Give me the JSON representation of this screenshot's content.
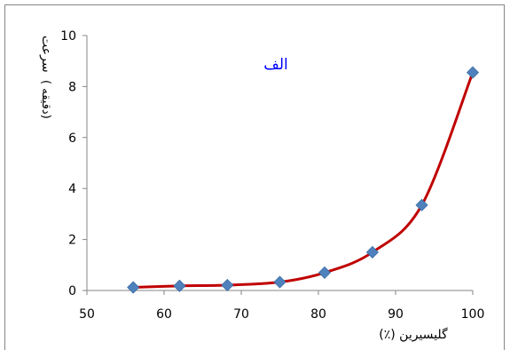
{
  "chart_data": {
    "type": "scatter",
    "title": "الف",
    "xlabel": "گلیسیرین (٪)",
    "ylabel_line1": "سرعت",
    "ylabel_line2": "( دقیقه)",
    "xlim": [
      50,
      100
    ],
    "ylim": [
      0,
      10
    ],
    "x_ticks": [
      50,
      60,
      70,
      80,
      90,
      100
    ],
    "y_ticks": [
      0,
      2,
      4,
      6,
      8,
      10
    ],
    "grid": false,
    "series": [
      {
        "x": [
          56,
          62,
          68.2,
          75,
          80.8,
          87,
          93.4,
          100
        ],
        "y": [
          0.12,
          0.18,
          0.21,
          0.33,
          0.7,
          1.5,
          3.35,
          8.55
        ],
        "marker": "diamond",
        "marker_color": "#4f81bd",
        "line_color": "#c00000",
        "smoothed": true
      }
    ]
  }
}
